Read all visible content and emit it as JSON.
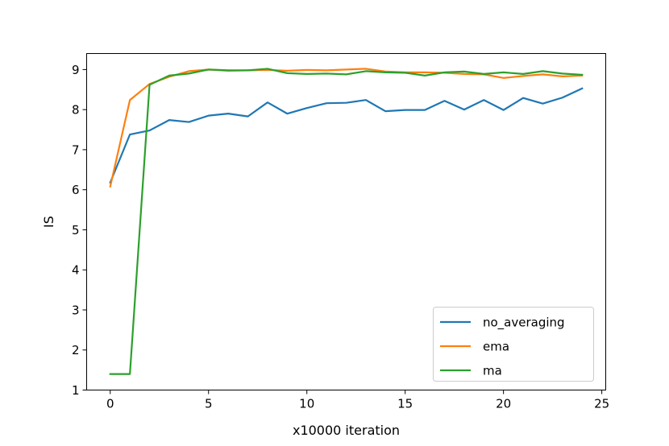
{
  "chart_data": {
    "type": "line",
    "title": "",
    "xlabel": "x10000 iteration",
    "ylabel": "IS",
    "xlim": [
      -1.2,
      25.2
    ],
    "ylim": [
      1,
      9.4
    ],
    "xticks": [
      0,
      5,
      10,
      15,
      20,
      25
    ],
    "yticks": [
      1,
      2,
      3,
      4,
      5,
      6,
      7,
      8,
      9
    ],
    "grid": false,
    "legend_position": "bottom-right",
    "x": [
      0,
      1,
      2,
      3,
      4,
      5,
      6,
      7,
      8,
      9,
      10,
      11,
      12,
      13,
      14,
      15,
      16,
      17,
      18,
      19,
      20,
      21,
      22,
      23,
      24
    ],
    "series": [
      {
        "name": "no_averaging",
        "color": "#1f77b4",
        "values": [
          6.18,
          7.38,
          7.48,
          7.74,
          7.69,
          7.85,
          7.9,
          7.83,
          8.18,
          7.9,
          8.04,
          8.16,
          8.17,
          8.24,
          7.96,
          7.99,
          7.99,
          8.22,
          8.0,
          8.24,
          7.99,
          8.29,
          8.15,
          8.3,
          8.53
        ]
      },
      {
        "name": "ema",
        "color": "#ff7f0e",
        "values": [
          6.08,
          8.24,
          8.64,
          8.82,
          8.96,
          9.0,
          8.97,
          8.98,
          8.99,
          8.97,
          8.99,
          8.98,
          9.0,
          9.02,
          8.95,
          8.93,
          8.93,
          8.92,
          8.89,
          8.88,
          8.79,
          8.84,
          8.88,
          8.83,
          8.85
        ]
      },
      {
        "name": "ma",
        "color": "#2ca02c",
        "values": [
          1.4,
          1.4,
          8.62,
          8.85,
          8.9,
          9.0,
          8.98,
          8.98,
          9.02,
          8.91,
          8.89,
          8.9,
          8.88,
          8.96,
          8.93,
          8.92,
          8.85,
          8.93,
          8.95,
          8.89,
          8.93,
          8.89,
          8.96,
          8.9,
          8.87
        ]
      }
    ]
  }
}
